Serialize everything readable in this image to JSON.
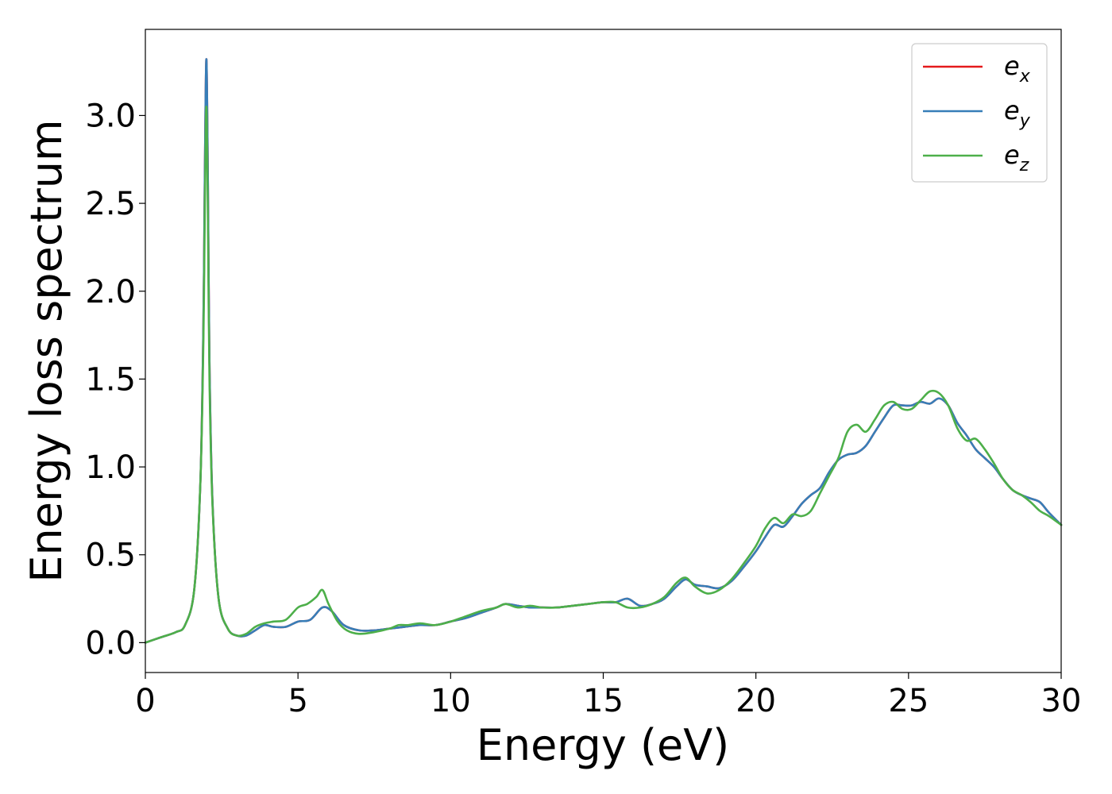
{
  "chart_data": {
    "type": "line",
    "title": "",
    "xlabel": "Energy (eV)",
    "ylabel": "Energy loss spectrum",
    "xlim": [
      0,
      30
    ],
    "ylim": [
      -0.17,
      3.49
    ],
    "xticks": [
      0,
      5,
      10,
      15,
      20,
      25,
      30
    ],
    "xtick_labels": [
      "0",
      "5",
      "10",
      "15",
      "20",
      "25",
      "30"
    ],
    "yticks": [
      0.0,
      0.5,
      1.0,
      1.5,
      2.0,
      2.5,
      3.0
    ],
    "ytick_labels": [
      "0.0",
      "0.5",
      "1.0",
      "1.5",
      "2.0",
      "2.5",
      "3.0"
    ],
    "grid": false,
    "legend_position": "top-right",
    "series": [
      {
        "name": "e_x",
        "label_main": "e",
        "label_sub": "x",
        "color": "#e41a1c",
        "x": [
          0,
          0.5,
          1.0,
          1.3,
          1.6,
          1.8,
          1.9,
          1.95,
          2.0,
          2.05,
          2.1,
          2.2,
          2.4,
          2.7,
          3.0,
          3.3,
          3.6,
          3.9,
          4.2,
          4.6,
          5.0,
          5.4,
          5.8,
          6.1,
          6.5,
          7.0,
          7.5,
          8.0,
          8.5,
          9.0,
          9.5,
          10.0,
          10.5,
          11.0,
          11.5,
          11.8,
          12.2,
          12.6,
          13.0,
          13.5,
          14.0,
          14.5,
          15.0,
          15.4,
          15.8,
          16.2,
          16.6,
          17.0,
          17.4,
          17.7,
          18.0,
          18.4,
          18.8,
          19.2,
          19.6,
          20.0,
          20.3,
          20.6,
          20.9,
          21.2,
          21.5,
          21.8,
          22.1,
          22.4,
          22.7,
          23.0,
          23.3,
          23.6,
          23.9,
          24.2,
          24.5,
          24.8,
          25.1,
          25.4,
          25.7,
          26.0,
          26.3,
          26.6,
          26.9,
          27.2,
          27.5,
          27.8,
          28.1,
          28.4,
          28.7,
          29.0,
          29.3,
          29.6,
          30.0
        ],
        "y": [
          0.0,
          0.03,
          0.06,
          0.1,
          0.3,
          0.9,
          1.8,
          2.7,
          3.32,
          2.6,
          1.6,
          0.8,
          0.25,
          0.08,
          0.04,
          0.04,
          0.07,
          0.1,
          0.09,
          0.09,
          0.12,
          0.13,
          0.2,
          0.18,
          0.1,
          0.07,
          0.07,
          0.08,
          0.09,
          0.1,
          0.1,
          0.12,
          0.14,
          0.17,
          0.2,
          0.22,
          0.21,
          0.2,
          0.2,
          0.2,
          0.21,
          0.22,
          0.23,
          0.23,
          0.25,
          0.21,
          0.22,
          0.25,
          0.32,
          0.36,
          0.33,
          0.32,
          0.31,
          0.35,
          0.43,
          0.52,
          0.6,
          0.67,
          0.66,
          0.72,
          0.79,
          0.84,
          0.88,
          0.97,
          1.04,
          1.07,
          1.08,
          1.12,
          1.2,
          1.28,
          1.35,
          1.35,
          1.35,
          1.37,
          1.36,
          1.39,
          1.35,
          1.25,
          1.18,
          1.1,
          1.05,
          1.0,
          0.93,
          0.87,
          0.84,
          0.82,
          0.8,
          0.74,
          0.67
        ]
      },
      {
        "name": "e_y",
        "label_main": "e",
        "label_sub": "y",
        "color": "#377eb8",
        "x": [
          0,
          0.5,
          1.0,
          1.3,
          1.6,
          1.8,
          1.9,
          1.95,
          2.0,
          2.05,
          2.1,
          2.2,
          2.4,
          2.7,
          3.0,
          3.3,
          3.6,
          3.9,
          4.2,
          4.6,
          5.0,
          5.4,
          5.8,
          6.1,
          6.5,
          7.0,
          7.5,
          8.0,
          8.5,
          9.0,
          9.5,
          10.0,
          10.5,
          11.0,
          11.5,
          11.8,
          12.2,
          12.6,
          13.0,
          13.5,
          14.0,
          14.5,
          15.0,
          15.4,
          15.8,
          16.2,
          16.6,
          17.0,
          17.4,
          17.7,
          18.0,
          18.4,
          18.8,
          19.2,
          19.6,
          20.0,
          20.3,
          20.6,
          20.9,
          21.2,
          21.5,
          21.8,
          22.1,
          22.4,
          22.7,
          23.0,
          23.3,
          23.6,
          23.9,
          24.2,
          24.5,
          24.8,
          25.1,
          25.4,
          25.7,
          26.0,
          26.3,
          26.6,
          26.9,
          27.2,
          27.5,
          27.8,
          28.1,
          28.4,
          28.7,
          29.0,
          29.3,
          29.6,
          30.0
        ],
        "y": [
          0.0,
          0.03,
          0.06,
          0.1,
          0.3,
          0.9,
          1.8,
          2.7,
          3.32,
          2.6,
          1.6,
          0.8,
          0.25,
          0.08,
          0.04,
          0.04,
          0.07,
          0.1,
          0.09,
          0.09,
          0.12,
          0.13,
          0.2,
          0.18,
          0.1,
          0.07,
          0.07,
          0.08,
          0.09,
          0.1,
          0.1,
          0.12,
          0.14,
          0.17,
          0.2,
          0.22,
          0.21,
          0.2,
          0.2,
          0.2,
          0.21,
          0.22,
          0.23,
          0.23,
          0.25,
          0.21,
          0.22,
          0.25,
          0.32,
          0.36,
          0.33,
          0.32,
          0.31,
          0.35,
          0.43,
          0.52,
          0.6,
          0.67,
          0.66,
          0.72,
          0.79,
          0.84,
          0.88,
          0.97,
          1.04,
          1.07,
          1.08,
          1.12,
          1.2,
          1.28,
          1.35,
          1.35,
          1.35,
          1.37,
          1.36,
          1.39,
          1.35,
          1.25,
          1.18,
          1.1,
          1.05,
          1.0,
          0.93,
          0.87,
          0.84,
          0.82,
          0.8,
          0.74,
          0.67
        ]
      },
      {
        "name": "e_z",
        "label_main": "e",
        "label_sub": "z",
        "color": "#4daf4a",
        "x": [
          0,
          0.5,
          1.0,
          1.3,
          1.6,
          1.8,
          1.9,
          1.95,
          2.0,
          2.05,
          2.1,
          2.2,
          2.4,
          2.7,
          3.0,
          3.3,
          3.6,
          3.9,
          4.2,
          4.6,
          5.0,
          5.3,
          5.6,
          5.8,
          6.0,
          6.3,
          6.6,
          7.0,
          7.5,
          8.0,
          8.3,
          8.6,
          9.0,
          9.5,
          10.0,
          10.5,
          11.0,
          11.5,
          11.8,
          12.2,
          12.6,
          13.0,
          13.5,
          14.0,
          14.5,
          15.0,
          15.4,
          15.8,
          16.2,
          16.6,
          17.0,
          17.4,
          17.7,
          18.0,
          18.4,
          18.8,
          19.2,
          19.6,
          20.0,
          20.3,
          20.6,
          20.9,
          21.2,
          21.5,
          21.8,
          22.1,
          22.4,
          22.7,
          23.0,
          23.3,
          23.6,
          23.9,
          24.2,
          24.5,
          24.8,
          25.1,
          25.4,
          25.7,
          26.0,
          26.3,
          26.6,
          26.9,
          27.2,
          27.5,
          27.8,
          28.1,
          28.4,
          28.7,
          29.0,
          29.3,
          29.6,
          30.0
        ],
        "y": [
          0.0,
          0.03,
          0.06,
          0.1,
          0.3,
          0.9,
          1.7,
          2.5,
          3.05,
          2.4,
          1.5,
          0.78,
          0.25,
          0.08,
          0.04,
          0.05,
          0.09,
          0.11,
          0.12,
          0.13,
          0.2,
          0.22,
          0.26,
          0.3,
          0.22,
          0.12,
          0.07,
          0.05,
          0.06,
          0.08,
          0.1,
          0.1,
          0.11,
          0.1,
          0.12,
          0.15,
          0.18,
          0.2,
          0.22,
          0.2,
          0.21,
          0.2,
          0.2,
          0.21,
          0.22,
          0.23,
          0.23,
          0.2,
          0.2,
          0.22,
          0.26,
          0.34,
          0.37,
          0.32,
          0.28,
          0.3,
          0.36,
          0.45,
          0.55,
          0.65,
          0.71,
          0.68,
          0.73,
          0.72,
          0.75,
          0.85,
          0.95,
          1.05,
          1.2,
          1.24,
          1.2,
          1.27,
          1.35,
          1.37,
          1.33,
          1.33,
          1.38,
          1.43,
          1.42,
          1.35,
          1.22,
          1.15,
          1.16,
          1.1,
          1.02,
          0.93,
          0.87,
          0.84,
          0.8,
          0.75,
          0.72,
          0.67
        ]
      }
    ]
  }
}
